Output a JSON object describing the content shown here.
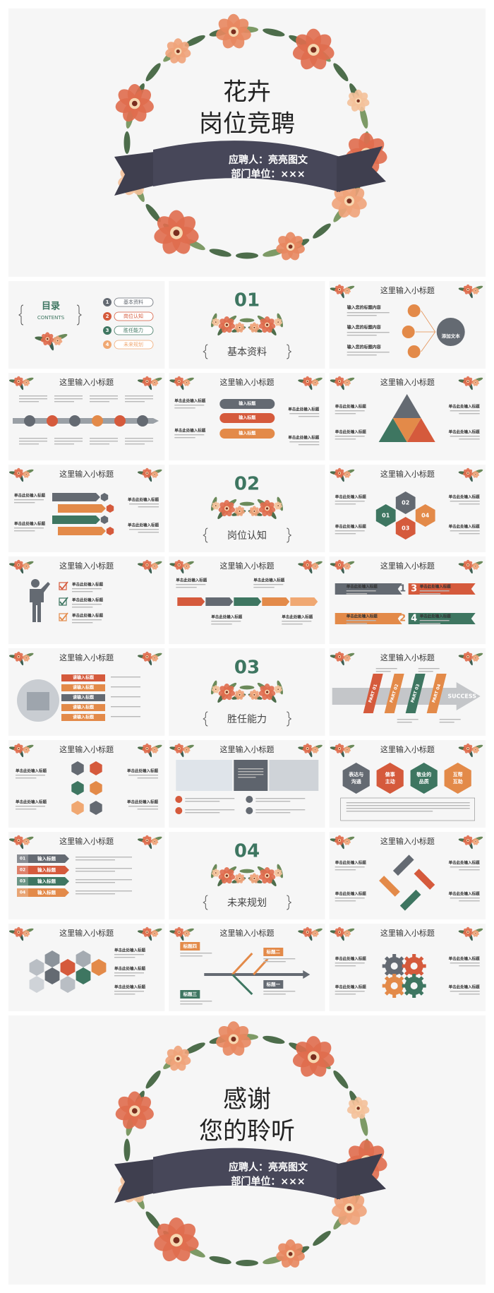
{
  "cover": {
    "title_line1": "花卉",
    "title_line2": "岗位竞聘",
    "applicant": "应聘人：亮亮图文",
    "department": "部门单位：×××"
  },
  "slides": [
    {
      "heading": "目录",
      "subheading": "CONTENTS",
      "items": [
        {
          "number": 1,
          "label": "基本资料"
        },
        {
          "number": 2,
          "label": "岗位认知"
        },
        {
          "number": 3,
          "label": "胜任能力"
        },
        {
          "number": 4,
          "label": "未来规划"
        }
      ]
    },
    {
      "number": "01",
      "label": "基本资料"
    },
    {
      "title": "这里输入小标题",
      "items": [
        "输入您的标题内容",
        "输入您的标题内容",
        "输入您的标题内容"
      ],
      "center": "添加文本"
    },
    {
      "title": "这里输入小标题"
    },
    {
      "title": "这里输入小标题",
      "labels": [
        "输入标题",
        "输入标题",
        "输入标题"
      ],
      "captions": [
        "单击此处输入标题",
        "单击此处输入标题",
        "单击此处输入标题",
        "单击此处输入标题"
      ]
    },
    {
      "title": "这里输入小标题",
      "captions": [
        "单击此处输入标题",
        "单击此处输入标题",
        "单击此处输入标题",
        "单击此处输入标题"
      ]
    },
    {
      "title": "这里输入小标题",
      "captions": [
        "单击此处输入标题",
        "单击此处输入标题",
        "单击此处输入标题",
        "单击此处输入标题"
      ]
    },
    {
      "number": "02",
      "label": "岗位认知"
    },
    {
      "title": "这里输入小标题",
      "hexes": [
        "01",
        "02",
        "03",
        "04"
      ],
      "captions": [
        "单击此处输入标题",
        "单击此处输入标题",
        "单击此处输入标题",
        "单击此处输入标题"
      ]
    },
    {
      "title": "这里输入小标题",
      "captions": [
        "单击此处输入标题",
        "单击此处输入标题",
        "单击此处输入标题"
      ]
    },
    {
      "title": "这里输入小标题",
      "captions": [
        "单击此处输入标题",
        "单击此处输入标题",
        "单击此处输入标题",
        "单击此处输入标题"
      ]
    },
    {
      "title": "这里输入小标题",
      "numbers": [
        1,
        3,
        2,
        4
      ],
      "captions": [
        "单击此处输入标题",
        "单击此处输入标题",
        "单击此处输入标题",
        "单击此处输入标题"
      ]
    },
    {
      "title": "这里输入小标题",
      "bars": [
        "请输入标题",
        "请输入标题",
        "请输入标题",
        "请输入标题",
        "请输入标题"
      ]
    },
    {
      "number": "03",
      "label": "胜任能力"
    },
    {
      "title": "这里输入小标题",
      "parts": [
        "PART 01",
        "PART 02",
        "PART 03",
        "PART 04"
      ],
      "arrow": "SUCCESS"
    },
    {
      "title": "这里输入小标题",
      "captions": [
        "单击此处输入标题",
        "单击此处输入标题",
        "单击此处输入标题",
        "单击此处输入标题"
      ]
    },
    {
      "title": "这里输入小标题"
    },
    {
      "title": "这里输入小标题",
      "hexes": [
        {
          "lines": [
            "表达与",
            "沟通"
          ]
        },
        {
          "lines": [
            "做事",
            "主动"
          ]
        },
        {
          "lines": [
            "敬业的",
            "品质"
          ]
        },
        {
          "lines": [
            "互帮",
            "互助"
          ]
        }
      ]
    },
    {
      "title": "这里输入小标题",
      "tabs": [
        "01",
        "02",
        "03",
        "04"
      ],
      "labels": [
        "输入标题",
        "输入标题",
        "输入标题",
        "输入标题"
      ]
    },
    {
      "number": "04",
      "label": "未来规划"
    },
    {
      "title": "这里输入小标题",
      "captions": [
        "单击此处输入标题",
        "单击此处输入标题",
        "单击此处输入标题",
        "单击此处输入标题"
      ]
    },
    {
      "title": "这里输入小标题",
      "captions": [
        "单击此处输入标题",
        "单击此处输入标题",
        "单击此处输入标题"
      ]
    },
    {
      "title": "这里输入小标题",
      "labels": [
        "标题四",
        "标题二",
        "标题三",
        "标题一"
      ]
    },
    {
      "title": "这里输入小标题",
      "captions": [
        "单击此处输入标题",
        "单击此处输入标题",
        "单击此处输入标题",
        "单击此处输入标题"
      ]
    }
  ],
  "closing": {
    "title_line1": "感谢",
    "title_line2": "您的聆听",
    "applicant": "应聘人：亮亮图文",
    "department": "部门单位：×××"
  }
}
